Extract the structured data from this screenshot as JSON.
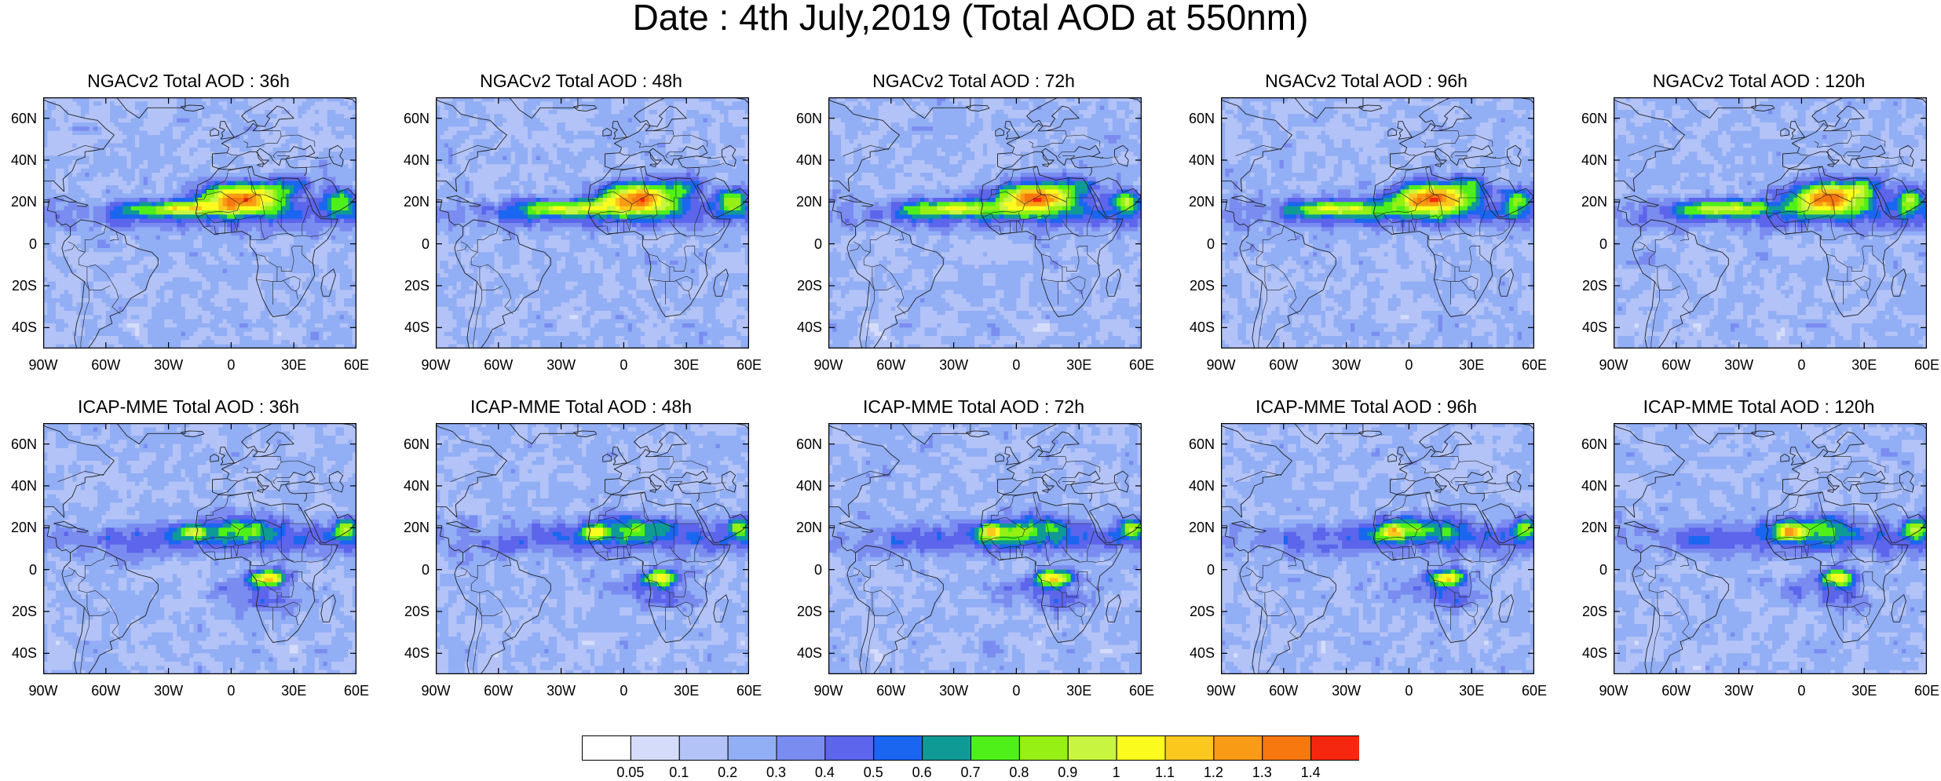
{
  "title": "Date : 4th July,2019 (Total AOD at 550nm)",
  "panels": [
    {
      "title": "NGACv2 Total AOD : 36h",
      "model": "NGAC",
      "seed": 1
    },
    {
      "title": "NGACv2 Total AOD : 48h",
      "model": "NGAC",
      "seed": 2
    },
    {
      "title": "NGACv2 Total AOD : 72h",
      "model": "NGAC",
      "seed": 3
    },
    {
      "title": "NGACv2 Total AOD : 96h",
      "model": "NGAC",
      "seed": 4
    },
    {
      "title": "NGACv2 Total AOD : 120h",
      "model": "NGAC",
      "seed": 5
    },
    {
      "title": "ICAP-MME Total AOD : 36h",
      "model": "ICAP",
      "seed": 6
    },
    {
      "title": "ICAP-MME Total AOD : 48h",
      "model": "ICAP",
      "seed": 7
    },
    {
      "title": "ICAP-MME Total AOD : 72h",
      "model": "ICAP",
      "seed": 8
    },
    {
      "title": "ICAP-MME Total AOD : 96h",
      "model": "ICAP",
      "seed": 9
    },
    {
      "title": "ICAP-MME Total AOD : 120h",
      "model": "ICAP",
      "seed": 10
    }
  ],
  "lat_ticks": [
    "60N",
    "40N",
    "20N",
    "0",
    "20S",
    "40S"
  ],
  "lon_ticks": [
    "90W",
    "60W",
    "30W",
    "0",
    "30E",
    "60E"
  ],
  "colorbar": {
    "labels": [
      "0.05",
      "0.1",
      "0.2",
      "0.3",
      "0.4",
      "0.5",
      "0.6",
      "0.7",
      "0.8",
      "0.9",
      "1",
      "1.1",
      "1.2",
      "1.3",
      "1.4"
    ],
    "colors": [
      "#ffffff",
      "#d5dcfa",
      "#b3c3f7",
      "#92aef5",
      "#7b8cf0",
      "#5c65eb",
      "#1a66f0",
      "#0f9a96",
      "#4ff01a",
      "#96f014",
      "#c8f540",
      "#fbfb1e",
      "#fbc81e",
      "#f99b14",
      "#f7780f",
      "#f5280f"
    ]
  }
}
